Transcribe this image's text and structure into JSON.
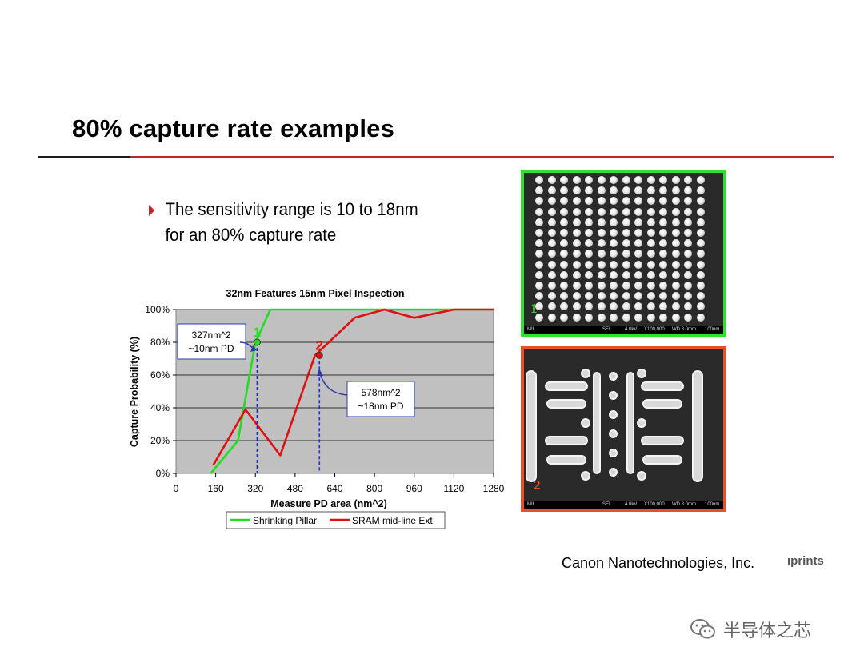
{
  "slide": {
    "title": "80% capture rate examples",
    "bullet_line1": "The sensitivity range is 10 to 18nm",
    "bullet_line2": "for an 80% capture rate",
    "credit": "Canon Nanotechnologies, Inc.",
    "credit_partial": "ıprints",
    "watermark": "半导体之芯",
    "accent_color": "#c0272d"
  },
  "chart_data": {
    "type": "line",
    "title": "32nm Features 15nm Pixel Inspection",
    "xlabel": "Measure PD area (nm^2)",
    "ylabel": "Capture Probability (%)",
    "xlim": [
      0,
      1280
    ],
    "ylim": [
      0,
      100
    ],
    "x_ticks": [
      "0",
      "160",
      "320",
      "480",
      "640",
      "800",
      "960",
      "1120",
      "1280"
    ],
    "y_ticks": [
      "0%",
      "20%",
      "40%",
      "60%",
      "80%",
      "100%"
    ],
    "grid": true,
    "legend_position": "bottom",
    "series": [
      {
        "name": "Shrinking Pillar",
        "color": "#22dd22",
        "points": [
          [
            140,
            0
          ],
          [
            250,
            20
          ],
          [
            320,
            80
          ],
          [
            380,
            100
          ],
          [
            480,
            100
          ],
          [
            800,
            100
          ],
          [
            1120,
            100
          ],
          [
            1280,
            100
          ]
        ]
      },
      {
        "name": "SRAM mid-line Ext",
        "color": "#dd1111",
        "points": [
          [
            150,
            5
          ],
          [
            280,
            39
          ],
          [
            420,
            11
          ],
          [
            560,
            72
          ],
          [
            720,
            95
          ],
          [
            840,
            100
          ],
          [
            960,
            95
          ],
          [
            1120,
            100
          ],
          [
            1280,
            100
          ]
        ]
      }
    ],
    "markers": [
      {
        "label": "1",
        "x": 327,
        "y": 80,
        "color": "#22dd22"
      },
      {
        "label": "2",
        "x": 578,
        "y": 72,
        "color": "#dd1111"
      }
    ],
    "callouts": [
      {
        "line1": "327nm^2",
        "line2": "~10nm PD"
      },
      {
        "line1": "578nm^2",
        "line2": "~18nm PD"
      }
    ]
  },
  "images": [
    {
      "label": "1",
      "border_color": "#33dd33",
      "strip": [
        "MII",
        "SEI",
        "4.0kV",
        "X100,000",
        "WD 8.0mm",
        "100nm"
      ]
    },
    {
      "label": "2",
      "border_color": "#e8502a",
      "strip": [
        "MII",
        "SEI",
        "4.0kV",
        "X100,000",
        "WD 8.0mm",
        "100nm"
      ]
    }
  ]
}
